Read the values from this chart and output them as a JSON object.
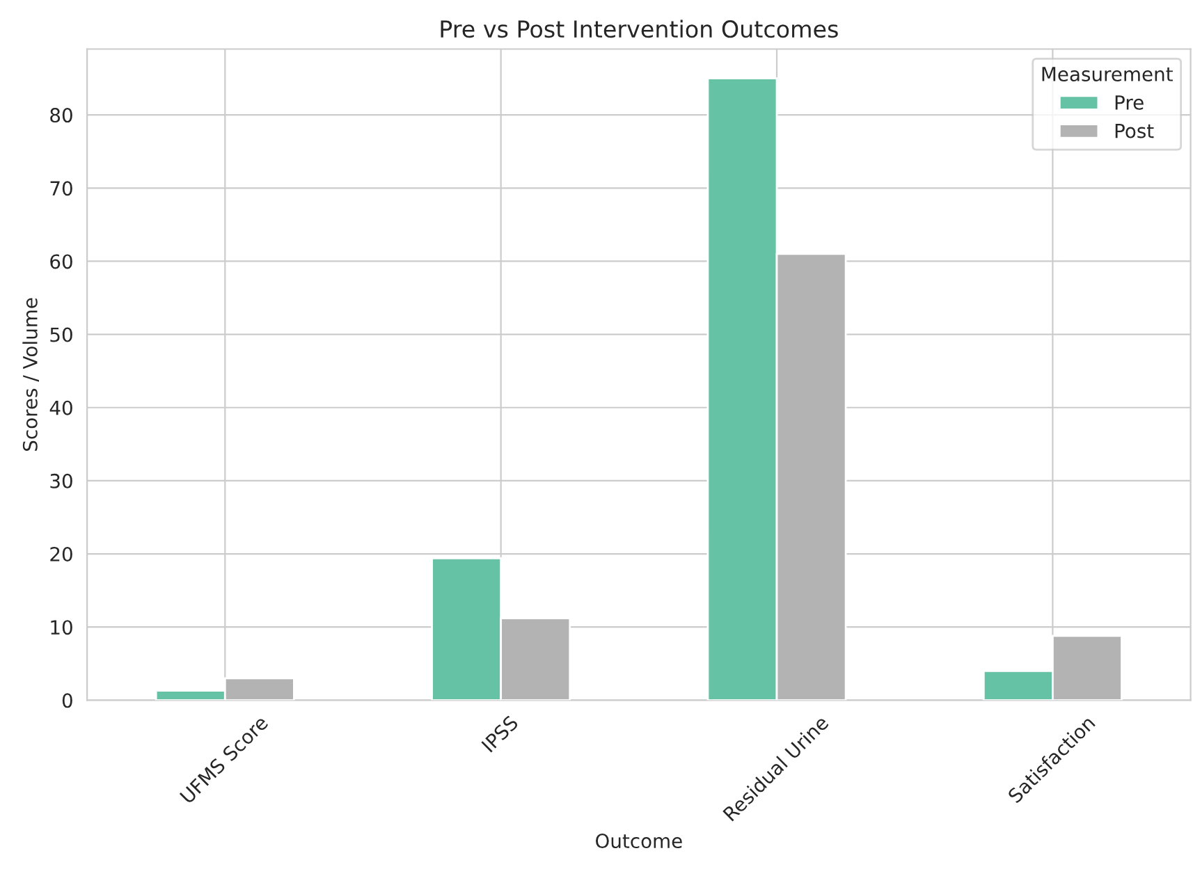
{
  "chart_data": {
    "type": "bar",
    "title": "Pre vs Post Intervention Outcomes",
    "xlabel": "Outcome",
    "ylabel": "Scores / Volume",
    "legend_title": "Measurement",
    "categories": [
      "UFMS Score",
      "IPSS",
      "Residual Urine",
      "Satisfaction"
    ],
    "series": [
      {
        "name": "Pre",
        "color": "#66c2a5",
        "values": [
          1.3,
          19.4,
          85,
          4.0
        ]
      },
      {
        "name": "Post",
        "color": "#b3b3b3",
        "values": [
          3.0,
          11.2,
          61,
          8.8
        ]
      }
    ],
    "ylim": [
      0,
      89
    ],
    "yticks": [
      0,
      10,
      20,
      30,
      40,
      50,
      60,
      70,
      80
    ],
    "grid": true,
    "legend": "top right"
  }
}
